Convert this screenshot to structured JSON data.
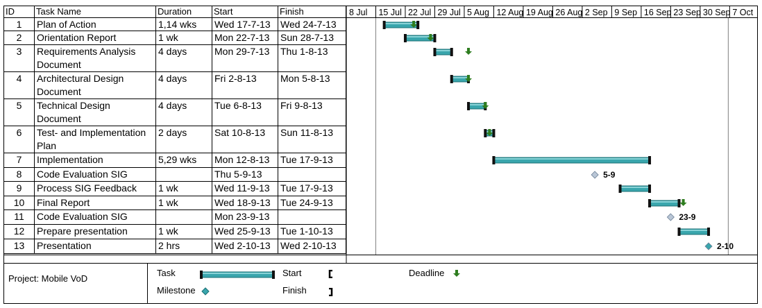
{
  "table": {
    "headers": {
      "id": "ID",
      "name": "Task Name",
      "duration": "Duration",
      "start": "Start",
      "finish": "Finish"
    },
    "rows": [
      {
        "id": "1",
        "name": "Plan of Action",
        "duration": "1,14 wks",
        "start": "Wed 17-7-13",
        "finish": "Wed 24-7-13"
      },
      {
        "id": "2",
        "name": "Orientation Report",
        "duration": "1 wk",
        "start": "Mon 22-7-13",
        "finish": "Sun 28-7-13"
      },
      {
        "id": "3",
        "name": "Requirements Analysis Document",
        "duration": "4 days",
        "start": "Mon 29-7-13",
        "finish": "Thu 1-8-13"
      },
      {
        "id": "4",
        "name": "Architectural Design Document",
        "duration": "4 days",
        "start": "Fri 2-8-13",
        "finish": "Mon 5-8-13"
      },
      {
        "id": "5",
        "name": "Technical Design Document",
        "duration": "4 days",
        "start": "Tue 6-8-13",
        "finish": "Fri 9-8-13"
      },
      {
        "id": "6",
        "name": "Test- and Implementation Plan",
        "duration": "2 days",
        "start": "Sat 10-8-13",
        "finish": "Sun 11-8-13"
      },
      {
        "id": "7",
        "name": "Implementation",
        "duration": "5,29 wks",
        "start": "Mon 12-8-13",
        "finish": "Tue 17-9-13"
      },
      {
        "id": "8",
        "name": "Code Evaluation SIG",
        "duration": "",
        "start": "Thu 5-9-13",
        "finish": ""
      },
      {
        "id": "9",
        "name": "Process SIG Feedback",
        "duration": "1 wk",
        "start": "Wed 11-9-13",
        "finish": "Tue 17-9-13"
      },
      {
        "id": "10",
        "name": "Final Report",
        "duration": "1 wk",
        "start": "Wed 18-9-13",
        "finish": "Tue 24-9-13"
      },
      {
        "id": "11",
        "name": "Code Evaluation SIG",
        "duration": "",
        "start": "Mon 23-9-13",
        "finish": ""
      },
      {
        "id": "12",
        "name": "Prepare presentation",
        "duration": "1 wk",
        "start": "Wed 25-9-13",
        "finish": "Tue 1-10-13"
      },
      {
        "id": "13",
        "name": "Presentation",
        "duration": "2 hrs",
        "start": "Wed 2-10-13",
        "finish": "Wed 2-10-13"
      }
    ]
  },
  "chart_data": {
    "type": "gantt",
    "timescale_labels": [
      "8 Jul",
      "15 Jul",
      "22 Jul",
      "29 Jul",
      "5 Aug",
      "12 Aug",
      "19 Aug",
      "26 Aug",
      "2 Sep",
      "9 Sep",
      "16 Sep",
      "23 Sep",
      "30 Sep",
      "7 Oct"
    ],
    "timescale_start": "2013-07-08",
    "timescale_end": "2013-10-10",
    "status_date": "2013-07-15",
    "tasks": [
      {
        "id": 1,
        "start": "2013-07-17",
        "finish": "2013-07-24",
        "milestone": false,
        "deadline": "2013-07-24"
      },
      {
        "id": 2,
        "start": "2013-07-22",
        "finish": "2013-07-28",
        "milestone": false,
        "deadline": "2013-07-28"
      },
      {
        "id": 3,
        "start": "2013-07-29",
        "finish": "2013-08-01",
        "milestone": false,
        "deadline": "2013-08-06"
      },
      {
        "id": 4,
        "start": "2013-08-02",
        "finish": "2013-08-05",
        "milestone": false,
        "deadline": "2013-08-06"
      },
      {
        "id": 5,
        "start": "2013-08-06",
        "finish": "2013-08-09",
        "milestone": false,
        "deadline": "2013-08-10"
      },
      {
        "id": 6,
        "start": "2013-08-10",
        "finish": "2013-08-11",
        "milestone": false,
        "deadline": "2013-08-11"
      },
      {
        "id": 7,
        "start": "2013-08-12",
        "finish": "2013-09-17",
        "milestone": false,
        "deadline": null
      },
      {
        "id": 8,
        "start": "2013-09-05",
        "finish": "2013-09-05",
        "milestone": true,
        "done": false,
        "label": "5-9",
        "deadline": null
      },
      {
        "id": 9,
        "start": "2013-09-11",
        "finish": "2013-09-17",
        "milestone": false,
        "deadline": null
      },
      {
        "id": 10,
        "start": "2013-09-18",
        "finish": "2013-09-24",
        "milestone": false,
        "deadline": "2013-09-26"
      },
      {
        "id": 11,
        "start": "2013-09-23",
        "finish": "2013-09-23",
        "milestone": true,
        "done": false,
        "label": "23-9",
        "deadline": null
      },
      {
        "id": 12,
        "start": "2013-09-25",
        "finish": "2013-10-01",
        "milestone": false,
        "deadline": null
      },
      {
        "id": 13,
        "start": "2013-10-02",
        "finish": "2013-10-02",
        "milestone": true,
        "done": true,
        "label": "2-10",
        "deadline": null
      }
    ],
    "colors": {
      "bar_fill": "#3aa6ad",
      "bar_highlight": "#8ad4d8",
      "bar_edge": "#1b6f74",
      "milestone_done": "#3aa6ad",
      "milestone_open": "#b9c6d6",
      "deadline_arrow": "#2e7d1f",
      "gridline": "#808080"
    }
  },
  "legend": {
    "project_label": "Project: Mobile VoD",
    "task_label": "Task",
    "milestone_label": "Milestone",
    "start_label": "Start",
    "finish_label": "Finish",
    "deadline_label": "Deadline"
  }
}
